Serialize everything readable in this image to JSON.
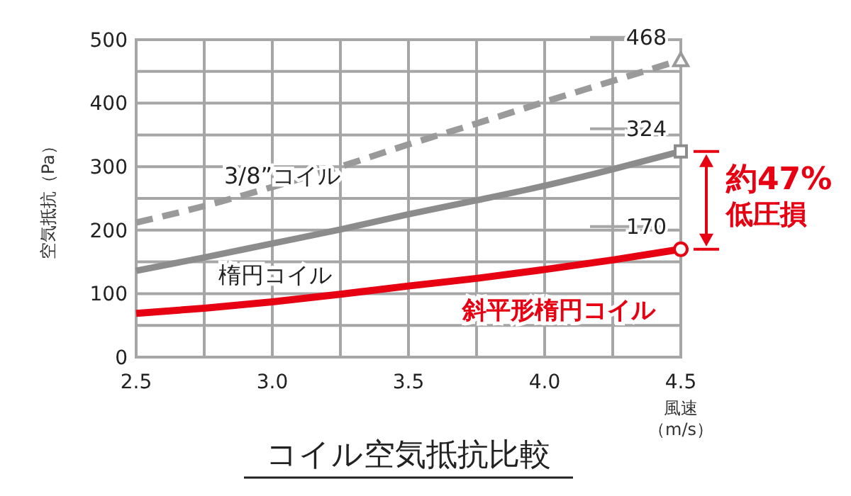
{
  "chart_data": {
    "type": "line",
    "title": "コイル空気抵抗比較",
    "xlabel": "風速（m/s）",
    "ylabel": "空気抵抗（Pa）",
    "x": [
      2.5,
      2.75,
      3.0,
      3.25,
      3.5,
      3.75,
      4.0,
      4.25,
      4.5
    ],
    "xlim": [
      2.5,
      4.5
    ],
    "xticks": [
      {
        "value": 2.5,
        "label": "2.5"
      },
      {
        "value": 2.75,
        "label": null
      },
      {
        "value": 3,
        "label": "3.0"
      },
      {
        "value": 3.25,
        "label": null
      },
      {
        "value": 3.5,
        "label": "3.5"
      },
      {
        "value": 3.75,
        "label": null
      },
      {
        "value": 4,
        "label": "4.0"
      },
      {
        "value": 4.25,
        "label": null
      },
      {
        "value": 4.5,
        "label": "4.5"
      }
    ],
    "ylim": [
      0,
      500
    ],
    "yticks": [
      0,
      {
        "value": 50,
        "label": null
      },
      100,
      {
        "value": 150,
        "label": null
      },
      200,
      {
        "value": 250,
        "label": null
      },
      300,
      {
        "value": 350,
        "label": null
      },
      400,
      {
        "value": 450,
        "label": null
      },
      500
    ],
    "grid": true,
    "series": [
      {
        "name": "3/8”コイル",
        "color": "#9a9a9a",
        "line_style": "dashed",
        "values": [
          212,
          238,
          268,
          300,
          335,
          368,
          402,
          435,
          468
        ],
        "value_labels": [
          null,
          null,
          null,
          null,
          null,
          null,
          null,
          null,
          "468"
        ]
      },
      {
        "name": "楕円コイル",
        "color": "#8c8c8c",
        "line_style": "solid",
        "values": [
          136,
          157,
          179,
          201,
          225,
          247,
          270,
          296,
          324
        ],
        "value_labels": [
          null,
          null,
          null,
          null,
          null,
          null,
          null,
          null,
          "324"
        ]
      },
      {
        "name": "斜平形楕円コイル",
        "color": "#e60012",
        "line_style": "solid",
        "values": [
          69,
          77,
          87,
          99,
          112,
          124,
          138,
          153,
          170
        ],
        "value_labels": [
          null,
          null,
          null,
          null,
          null,
          null,
          null,
          null,
          "170"
        ]
      }
    ],
    "annotations": [
      "約47%",
      "低圧損"
    ]
  }
}
